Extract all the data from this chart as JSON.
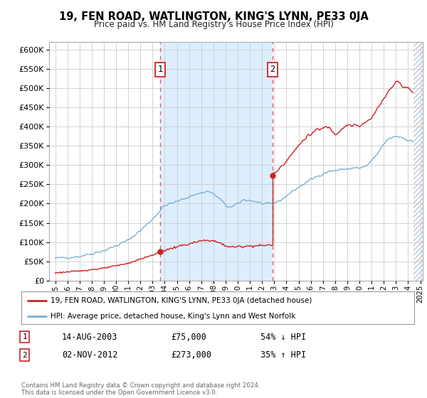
{
  "title": "19, FEN ROAD, WATLINGTON, KING'S LYNN, PE33 0JA",
  "subtitle": "Price paid vs. HM Land Registry's House Price Index (HPI)",
  "legend_line1": "19, FEN ROAD, WATLINGTON, KING'S LYNN, PE33 0JA (detached house)",
  "legend_line2": "HPI: Average price, detached house, King's Lynn and West Norfolk",
  "annotation1": {
    "label": "1",
    "date": "14-AUG-2003",
    "price": 75000,
    "hpi_text": "54% ↓ HPI",
    "x_year": 2003.62
  },
  "annotation2": {
    "label": "2",
    "date": "02-NOV-2012",
    "price": 273000,
    "hpi_text": "35% ↑ HPI",
    "x_year": 2012.84
  },
  "footer": "Contains HM Land Registry data © Crown copyright and database right 2024.\nThis data is licensed under the Open Government Licence v3.0.",
  "hpi_color": "#7aafd4",
  "price_color": "#cc2222",
  "vline_color": "#e06060",
  "shade_color": "#ddeeff",
  "hatch_color": "#b8c8d8",
  "chart_bg": "#ffffff",
  "grid_color": "#cccccc",
  "ylim": [
    0,
    620000
  ],
  "yticks": [
    0,
    50000,
    100000,
    150000,
    200000,
    250000,
    300000,
    350000,
    400000,
    450000,
    500000,
    550000,
    600000
  ],
  "xlim_start": 1994.5,
  "xlim_end": 2025.2
}
